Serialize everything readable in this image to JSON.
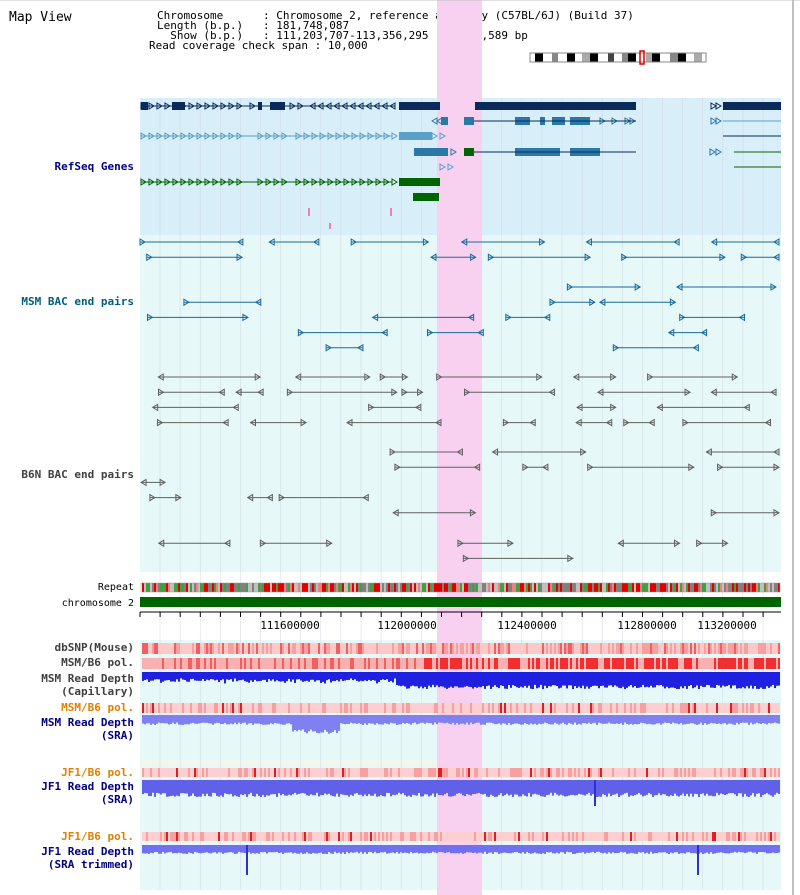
{
  "header": {
    "view_title": "Map View",
    "chromosome_key": "Chromosome",
    "chromosome_value": "Chromosome 2, reference assembly (C57BL/6J) (Build 37)",
    "length_key": "Length (b.p.)",
    "length_value": "181,748,087",
    "show_key": "Show (b.p.)",
    "show_value": "111,203,707-113,356,295 : 2,152,589 bp",
    "coverage_key": "Read coverage check span",
    "coverage_value": "10,000"
  },
  "tracks": {
    "refseq_label": "RefSeq Genes",
    "msm_bac_label": "MSM BAC end pairs",
    "b6n_bac_label": "B6N BAC end pairs",
    "repeat_label": "Repeat",
    "chromosome_label": "chromosome 2",
    "dbsnp_label": "dbSNP(Mouse)",
    "msm_pol_label": "MSM/B6 pol.",
    "msm_depth_cap_label_1": "MSM Read Depth",
    "msm_depth_cap_label_2": "(Capillary)",
    "msm_pol_sra_label": "MSM/B6 pol.",
    "msm_depth_sra_label_1": "MSM Read Depth",
    "msm_depth_sra_label_2": "(SRA)",
    "jf1_pol_label": "JF1/B6 pol.",
    "jf1_depth_label_1": "JF1 Read Depth",
    "jf1_depth_label_2": "(SRA)",
    "jf1_pol_trim_label": "JF1/B6 pol.",
    "jf1_depth_trim_label_1": "JF1 Read Depth",
    "jf1_depth_trim_label_2": "(SRA trimmed)"
  },
  "ruler": {
    "ticks": [
      "111600000",
      "112000000",
      "112400000",
      "112800000",
      "113200000"
    ]
  },
  "colors": {
    "label_navy": "#000080",
    "label_teal": "#006080",
    "label_gray": "#404040",
    "label_orange": "#e08000",
    "highlight": "#f8d0f0",
    "refseq_bg": "#d8eef8",
    "bac_bg": "#e6f8f8",
    "chromosome_green": "#006400"
  }
}
